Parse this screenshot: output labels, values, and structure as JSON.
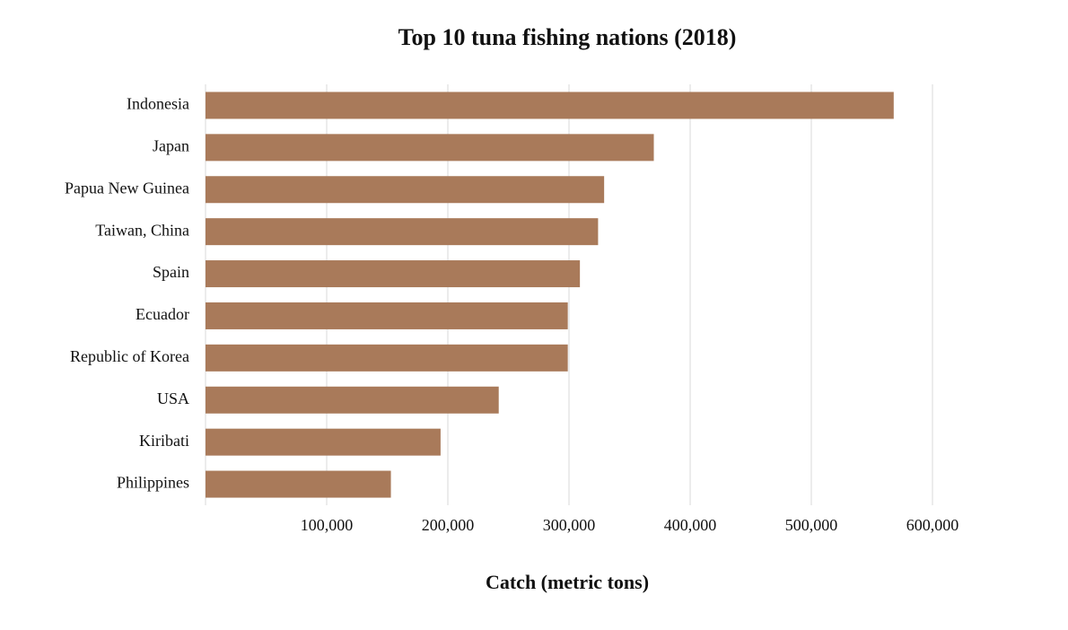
{
  "chart_data": {
    "type": "hbar",
    "title": "Top 10 tuna fishing nations (2018)",
    "x_label": "Catch (metric tons)",
    "categories": [
      "Indonesia",
      "Japan",
      "Papua New Guinea",
      "Taiwan, China",
      "Spain",
      "Ecuador",
      "Republic of Korea",
      "USA",
      "Kiribati",
      "Philippines"
    ],
    "values": [
      568000,
      370000,
      329000,
      324000,
      309000,
      299000,
      299000,
      242000,
      194000,
      153000
    ],
    "color": "#a97a5a",
    "xlim": [
      0,
      600000
    ],
    "xticks": [
      {
        "value": 100000,
        "label": "100,000"
      },
      {
        "value": 200000,
        "label": "200,000"
      },
      {
        "value": 300000,
        "label": "300,000"
      },
      {
        "value": 400000,
        "label": "400,000"
      },
      {
        "value": 500000,
        "label": "500,000"
      },
      {
        "value": 600000,
        "label": "600,000"
      }
    ],
    "grid": true
  }
}
